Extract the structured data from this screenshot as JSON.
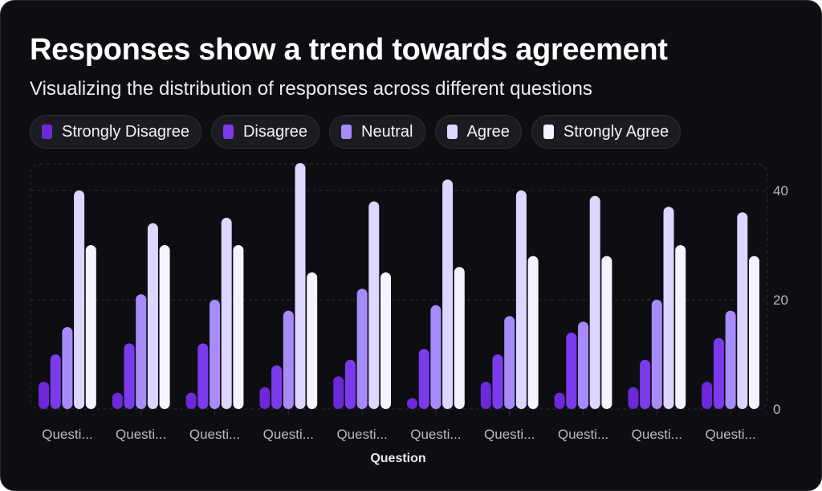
{
  "title": "Responses show a trend towards agreement",
  "subtitle": "Visualizing the distribution of responses across different questions",
  "chart_data": {
    "type": "bar",
    "title": "Responses show a trend towards agreement",
    "subtitle": "Visualizing the distribution of responses across different questions",
    "xlabel": "Question",
    "ylabel": "",
    "categories": [
      "Questi...",
      "Questi...",
      "Questi...",
      "Questi...",
      "Questi...",
      "Questi...",
      "Questi...",
      "Questi...",
      "Questi...",
      "Questi..."
    ],
    "ylim": [
      0,
      45
    ],
    "yticks": [
      0,
      20,
      40
    ],
    "y_axis_side": "right",
    "grid": true,
    "legend_placement": "top",
    "series": [
      {
        "name": "Strongly Disagree",
        "color": "#6d28d9",
        "values": [
          5,
          3,
          3,
          4,
          6,
          2,
          5,
          3,
          4,
          5
        ]
      },
      {
        "name": "Disagree",
        "color": "#7c3aed",
        "values": [
          10,
          12,
          12,
          8,
          9,
          11,
          10,
          14,
          9,
          13
        ]
      },
      {
        "name": "Neutral",
        "color": "#a78bfa",
        "values": [
          15,
          21,
          20,
          18,
          22,
          19,
          17,
          16,
          20,
          18
        ]
      },
      {
        "name": "Agree",
        "color": "#ddd6fe",
        "values": [
          40,
          34,
          35,
          45,
          38,
          42,
          40,
          39,
          37,
          36
        ]
      },
      {
        "name": "Strongly Agree",
        "color": "#f5f3ff",
        "values": [
          30,
          30,
          30,
          25,
          25,
          26,
          28,
          28,
          30,
          28
        ]
      }
    ]
  }
}
